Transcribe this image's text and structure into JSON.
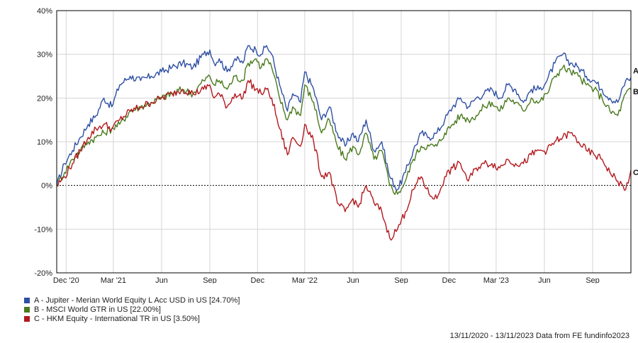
{
  "chart_data": {
    "type": "line",
    "y_ticks": [
      "40%",
      "30%",
      "20%",
      "10%",
      "0%",
      "-10%",
      "-20%"
    ],
    "ylim": [
      -20,
      40
    ],
    "x_tick_labels": [
      "Dec '20",
      "Mar '21",
      "Jun",
      "Sep",
      "Dec",
      "Mar '22",
      "Jun",
      "Sep",
      "Dec",
      "Mar '23",
      "Jun",
      "Sep"
    ],
    "x_ticks_days": [
      18,
      108,
      200,
      292,
      383,
      473,
      565,
      657,
      748,
      838,
      930,
      1022
    ],
    "xlim_days": [
      0,
      1095
    ],
    "grid": true,
    "legend_position": "bottom-left",
    "series": [
      {
        "name": "A - Jupiter - Merian World Equity L Acc USD in US [24.70%]",
        "end_label": "A",
        "color": "#2e4fa3",
        "x": [
          0,
          15,
          30,
          45,
          60,
          75,
          90,
          105,
          120,
          140,
          160,
          180,
          200,
          220,
          240,
          260,
          280,
          292,
          300,
          310,
          325,
          340,
          355,
          365,
          380,
          390,
          400,
          410,
          425,
          440,
          450,
          465,
          473,
          490,
          505,
          520,
          535,
          550,
          565,
          575,
          590,
          605,
          620,
          635,
          650,
          665,
          680,
          695,
          710,
          725,
          740,
          755,
          770,
          785,
          800,
          815,
          830,
          845,
          860,
          875,
          890,
          905,
          920,
          935,
          950,
          965,
          980,
          995,
          1010,
          1025,
          1040,
          1055,
          1070,
          1085,
          1095
        ],
        "values": [
          0,
          5,
          8,
          11,
          14,
          16,
          20,
          18,
          23,
          25,
          24,
          25,
          26,
          27,
          28,
          27,
          30,
          31,
          28,
          29,
          26,
          29,
          28,
          32,
          31,
          30,
          32,
          30,
          23,
          17,
          21,
          19,
          26,
          22,
          15,
          18,
          12,
          9,
          12,
          10,
          15,
          8,
          10,
          2,
          -1,
          3,
          8,
          12,
          11,
          12,
          15,
          18,
          20,
          18,
          20,
          21,
          22,
          20,
          23,
          22,
          19,
          22,
          22,
          24,
          28,
          30,
          28,
          27,
          25,
          24,
          22,
          20,
          19,
          24,
          24.7
        ]
      },
      {
        "name": "B - MSCI World GTR in US [22.00%]",
        "end_label": "B",
        "color": "#4a7a1e",
        "x": [
          0,
          15,
          30,
          45,
          60,
          75,
          90,
          105,
          120,
          140,
          160,
          180,
          200,
          220,
          240,
          260,
          280,
          292,
          300,
          310,
          325,
          340,
          355,
          365,
          380,
          390,
          400,
          410,
          425,
          440,
          450,
          465,
          473,
          490,
          505,
          520,
          535,
          550,
          565,
          575,
          590,
          605,
          620,
          635,
          650,
          665,
          680,
          695,
          710,
          725,
          740,
          755,
          770,
          785,
          800,
          815,
          830,
          845,
          860,
          875,
          890,
          905,
          920,
          935,
          950,
          965,
          980,
          995,
          1010,
          1025,
          1040,
          1055,
          1070,
          1085,
          1095
        ],
        "values": [
          0,
          3,
          6,
          8,
          10,
          11,
          12,
          13,
          14,
          17,
          18,
          19,
          20,
          21,
          22,
          21,
          24,
          25,
          23,
          24,
          22,
          25,
          24,
          28,
          29,
          27,
          29,
          27,
          20,
          15,
          18,
          16,
          23,
          19,
          12,
          15,
          9,
          6,
          9,
          7,
          12,
          6,
          8,
          0,
          -2,
          1,
          6,
          9,
          9,
          9,
          12,
          14,
          16,
          15,
          16,
          18,
          19,
          17,
          20,
          19,
          17,
          20,
          19,
          21,
          25,
          27,
          26,
          25,
          23,
          22,
          20,
          17,
          16,
          21,
          22
        ]
      },
      {
        "name": "C - HKM Equity - International TR in US [3.50%]",
        "end_label": "C",
        "color": "#b2191e",
        "x": [
          0,
          15,
          30,
          45,
          60,
          75,
          90,
          105,
          120,
          140,
          160,
          180,
          200,
          220,
          240,
          260,
          280,
          292,
          300,
          310,
          325,
          340,
          355,
          365,
          380,
          390,
          400,
          410,
          425,
          440,
          450,
          465,
          473,
          490,
          505,
          520,
          535,
          550,
          565,
          575,
          590,
          605,
          620,
          635,
          650,
          665,
          680,
          695,
          710,
          725,
          740,
          755,
          770,
          785,
          800,
          815,
          830,
          845,
          860,
          875,
          890,
          905,
          920,
          935,
          950,
          965,
          980,
          995,
          1010,
          1025,
          1040,
          1055,
          1070,
          1085,
          1095
        ],
        "values": [
          0,
          2,
          5,
          8,
          11,
          13,
          14,
          13,
          15,
          17,
          18,
          19,
          20,
          21,
          22,
          21,
          22,
          23,
          20,
          21,
          18,
          21,
          20,
          24,
          22,
          21,
          22,
          20,
          13,
          7,
          11,
          9,
          14,
          10,
          2,
          3,
          -4,
          -6,
          -3,
          -5,
          0,
          -4,
          -6,
          -12,
          -10,
          -6,
          -1,
          2,
          -2,
          -3,
          2,
          4,
          5,
          1,
          4,
          5,
          5,
          4,
          6,
          5,
          5,
          7,
          8,
          8,
          10,
          11,
          12,
          10,
          8,
          7,
          6,
          3,
          1,
          -1,
          3.5
        ]
      }
    ],
    "footer": "13/11/2020 - 13/11/2023 Data from FE fundinfo2023"
  }
}
